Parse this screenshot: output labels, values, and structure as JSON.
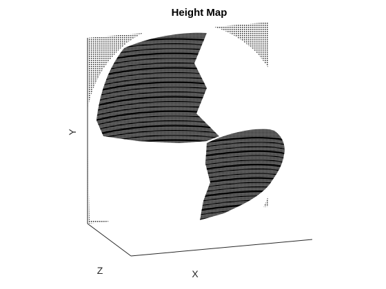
{
  "chart_data": {
    "type": "surface",
    "title": "Height Map",
    "xlabel": "X",
    "ylabel": "Y",
    "zlabel": "Z",
    "grid": false,
    "render": "mesh",
    "colors": {
      "background": "#ffffff",
      "mesh": "#000000",
      "axes": "#262626"
    }
  }
}
